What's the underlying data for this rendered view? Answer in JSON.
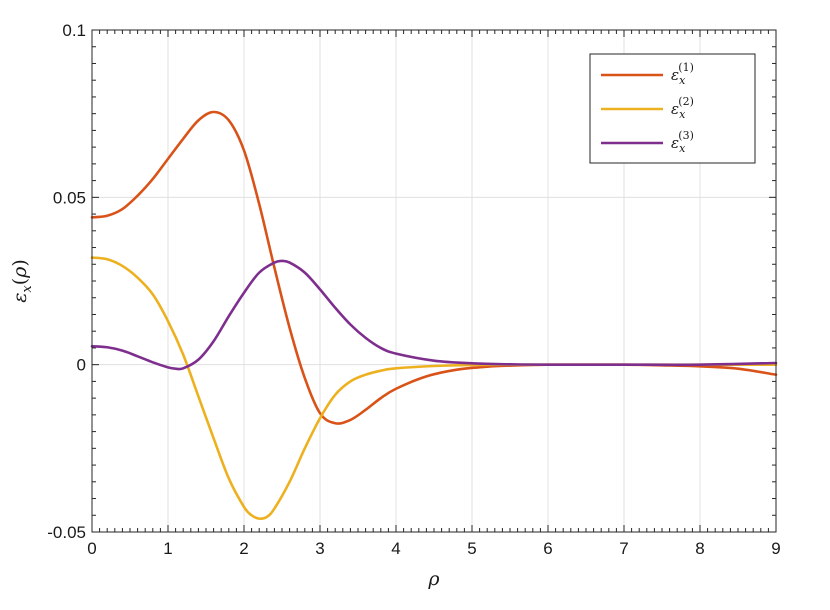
{
  "chart_data": {
    "type": "line",
    "title": "",
    "xlabel": "ρ",
    "ylabel": "ε_x(ρ)",
    "xlim": [
      0,
      9
    ],
    "ylim": [
      -0.05,
      0.1
    ],
    "xticks": [
      0,
      1,
      2,
      3,
      4,
      5,
      6,
      7,
      8,
      9
    ],
    "xtick_labels": [
      "0",
      "1",
      "2",
      "3",
      "4",
      "5",
      "6",
      "7",
      "8",
      "9"
    ],
    "yticks": [
      -0.05,
      0,
      0.05,
      0.1
    ],
    "ytick_labels": [
      "-0.05",
      "0",
      "0.05",
      "0.1"
    ],
    "grid": true,
    "legend_position": "top-right",
    "series": [
      {
        "name": "ε_x^(1)",
        "legend_base": "ε",
        "legend_sub": "x",
        "legend_sup": "(1)",
        "color": "#D95319",
        "x": [
          0,
          0.2,
          0.4,
          0.6,
          0.8,
          1.0,
          1.2,
          1.4,
          1.6,
          1.8,
          2.0,
          2.2,
          2.4,
          2.6,
          2.8,
          3.0,
          3.2,
          3.4,
          3.6,
          3.8,
          4.0,
          4.4,
          4.8,
          5.2,
          5.6,
          6.0,
          6.5,
          7.0,
          7.5,
          8.0,
          8.5,
          9.0
        ],
        "y": [
          0.044,
          0.0445,
          0.0465,
          0.0505,
          0.0555,
          0.0615,
          0.0675,
          0.073,
          0.0755,
          0.073,
          0.064,
          0.048,
          0.029,
          0.011,
          -0.004,
          -0.0145,
          -0.0175,
          -0.0165,
          -0.0135,
          -0.01,
          -0.0072,
          -0.0035,
          -0.0015,
          -0.0006,
          -0.0002,
          0.0,
          0.0,
          0.0,
          -0.0002,
          -0.0005,
          -0.0012,
          -0.003
        ]
      },
      {
        "name": "ε_x^(2)",
        "legend_base": "ε",
        "legend_sub": "x",
        "legend_sup": "(2)",
        "color": "#EDB120",
        "x": [
          0,
          0.2,
          0.4,
          0.6,
          0.8,
          1.0,
          1.2,
          1.4,
          1.6,
          1.8,
          2.0,
          2.1,
          2.2,
          2.3,
          2.4,
          2.6,
          2.8,
          3.0,
          3.2,
          3.4,
          3.6,
          3.8,
          4.0,
          4.5,
          5.0,
          5.5,
          6.0,
          7.0,
          8.0,
          9.0
        ],
        "y": [
          0.032,
          0.0315,
          0.0295,
          0.026,
          0.021,
          0.013,
          0.003,
          -0.0095,
          -0.022,
          -0.034,
          -0.0425,
          -0.045,
          -0.046,
          -0.0455,
          -0.043,
          -0.035,
          -0.025,
          -0.016,
          -0.009,
          -0.005,
          -0.003,
          -0.0018,
          -0.0011,
          -0.0004,
          -0.0001,
          0.0,
          0.0,
          0.0,
          0.0,
          0.0
        ]
      },
      {
        "name": "ε_x^(3)",
        "legend_base": "ε",
        "legend_sub": "x",
        "legend_sup": "(3)",
        "color": "#7E2F8E",
        "x": [
          0,
          0.2,
          0.4,
          0.6,
          0.8,
          1.0,
          1.1,
          1.2,
          1.4,
          1.6,
          1.8,
          2.0,
          2.2,
          2.4,
          2.5,
          2.6,
          2.8,
          3.0,
          3.2,
          3.4,
          3.6,
          3.8,
          4.0,
          4.5,
          5.0,
          5.5,
          6.0,
          7.0,
          8.0,
          9.0
        ],
        "y": [
          0.0055,
          0.0052,
          0.0042,
          0.0025,
          0.0007,
          -0.0008,
          -0.0012,
          -0.0011,
          0.0015,
          0.007,
          0.0145,
          0.0215,
          0.0275,
          0.0305,
          0.031,
          0.0305,
          0.0275,
          0.0225,
          0.017,
          0.012,
          0.008,
          0.005,
          0.0033,
          0.0012,
          0.0004,
          0.0001,
          0.0,
          0.0,
          0.0,
          0.0005
        ]
      }
    ]
  }
}
